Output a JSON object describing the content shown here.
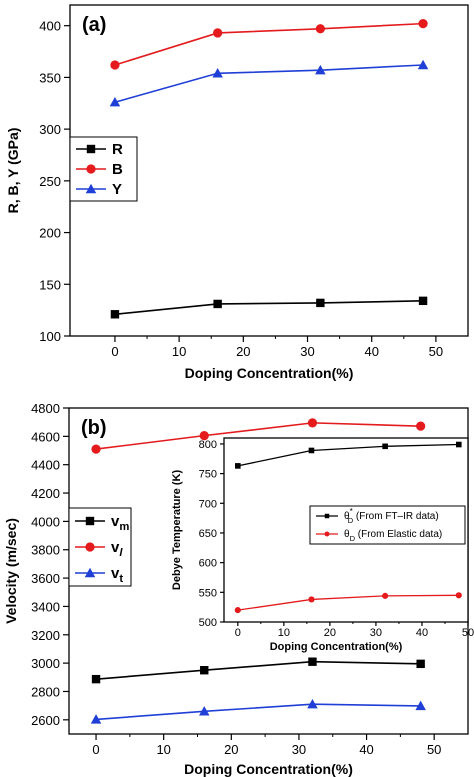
{
  "chart_data": [
    {
      "type": "line",
      "panel_label": "(a)",
      "xlabel": "Doping Concentration(%)",
      "ylabel": "R, B, Y (GPa)",
      "xlim": [
        -7,
        55
      ],
      "ylim": [
        100,
        420
      ],
      "xticks": [
        0,
        10,
        20,
        30,
        40,
        50
      ],
      "yticks": [
        100,
        150,
        200,
        250,
        300,
        350,
        400
      ],
      "x": [
        0,
        16,
        32,
        48
      ],
      "legend_position": "middle-left",
      "series": [
        {
          "name": "R",
          "values": [
            121,
            131,
            132,
            134
          ],
          "color": "#000000",
          "marker": "square"
        },
        {
          "name": "B",
          "values": [
            362,
            393,
            397,
            402
          ],
          "color": "#e41a1c",
          "marker": "circle"
        },
        {
          "name": "Y",
          "values": [
            326,
            354,
            357,
            362
          ],
          "color": "#1f3fd6",
          "marker": "triangle"
        }
      ]
    },
    {
      "type": "line",
      "panel_label": "(b)",
      "xlabel": "Doping Concentration(%)",
      "ylabel": "Velocity (m/sec)",
      "xlim": [
        -4,
        55
      ],
      "ylim": [
        2500,
        4800
      ],
      "xticks": [
        0,
        10,
        20,
        30,
        40,
        50
      ],
      "yticks": [
        2600,
        2800,
        3000,
        3200,
        3400,
        3600,
        3800,
        4000,
        4200,
        4400,
        4600,
        4800
      ],
      "x": [
        0,
        16,
        32,
        48
      ],
      "legend_position": "middle-left",
      "series": [
        {
          "name": "v",
          "subscript": "m",
          "values": [
            2887,
            2950,
            3010,
            2995
          ],
          "color": "#000000",
          "marker": "square"
        },
        {
          "name": "v",
          "subscript": "l",
          "values": [
            4510,
            4605,
            4695,
            4672
          ],
          "color": "#e41a1c",
          "marker": "circle"
        },
        {
          "name": "v",
          "subscript": "t",
          "values": [
            2603,
            2660,
            2710,
            2698
          ],
          "color": "#1f3fd6",
          "marker": "triangle"
        }
      ]
    },
    {
      "type": "line",
      "inset_of": "(b)",
      "xlabel": "Doping Concentration(%)",
      "ylabel": "Debye Temperature (K)",
      "xlim": [
        -3,
        50
      ],
      "ylim": [
        500,
        810
      ],
      "xticks": [
        0,
        10,
        20,
        30,
        40,
        50
      ],
      "yticks": [
        500,
        550,
        600,
        650,
        700,
        750,
        800
      ],
      "x": [
        0,
        16,
        32,
        48
      ],
      "legend_position": "middle-right",
      "series": [
        {
          "name": "θ",
          "subscript": "D",
          "superscript": "*",
          "suffix": " (From FT–IR data)",
          "values": [
            763,
            789,
            796,
            799
          ],
          "color": "#000000",
          "marker": "square"
        },
        {
          "name": "θ",
          "subscript": "D",
          "superscript": "",
          "suffix": " (From Elastic data)",
          "values": [
            520,
            538,
            544,
            545
          ],
          "color": "#e41a1c",
          "marker": "circle"
        }
      ]
    }
  ]
}
